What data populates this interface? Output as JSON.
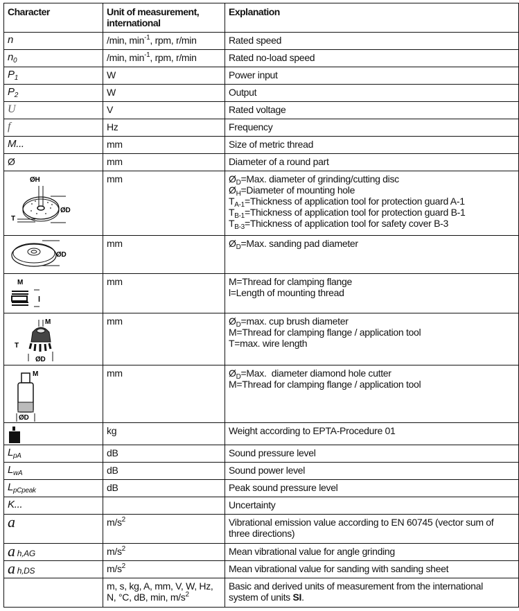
{
  "header": {
    "character": "Character",
    "unit": "Unit of measurement, international",
    "explanation": "Explanation"
  },
  "rows": [
    {
      "symbol": "n",
      "unit": "/min, min-1, rpm, r/min",
      "explanation": "Rated speed"
    },
    {
      "symbol": "n0",
      "unit": "/min, min-1, rpm, r/min",
      "explanation": "Rated no-load speed"
    },
    {
      "symbol": "P1",
      "unit": "W",
      "explanation": "Power input"
    },
    {
      "symbol": "P2",
      "unit": "W",
      "explanation": "Output"
    },
    {
      "symbol": "U",
      "unit": "V",
      "explanation": "Rated voltage"
    },
    {
      "symbol": "f",
      "unit": "Hz",
      "explanation": "Frequency"
    },
    {
      "symbol": "M...",
      "unit": "mm",
      "explanation": "Size of metric thread"
    },
    {
      "symbol": "Ø",
      "unit": "mm",
      "explanation": "Diameter of a round part"
    },
    {
      "icon": "grinding-disc-icon",
      "icon_labels": [
        "ØH",
        "ØD",
        "T"
      ],
      "unit": "mm",
      "lines": [
        "ØD=Max. diameter of grinding/cutting disc",
        "ØH=Diameter of mounting hole",
        "TA-1=Thickness of application tool for protection guard A-1",
        "TB-1=Thickness of application tool for protection guard B-1",
        "TB-3=Thickness of application tool for safety cover B-3"
      ]
    },
    {
      "icon": "sanding-pad-icon",
      "icon_labels": [
        "ØD"
      ],
      "unit": "mm",
      "lines": [
        "ØD=Max. sanding pad diameter"
      ]
    },
    {
      "icon": "thread-icon",
      "icon_labels": [
        "M",
        "l"
      ],
      "unit": "mm",
      "lines": [
        "M=Thread for clamping flange",
        "l=Length of mounting thread"
      ]
    },
    {
      "icon": "cup-brush-icon",
      "icon_labels": [
        "M",
        "T",
        "ØD"
      ],
      "unit": "mm",
      "lines": [
        "ØD=max. cup brush diameter",
        "M=Thread for clamping flange / application tool",
        "T=max. wire length"
      ]
    },
    {
      "icon": "diamond-hole-cutter-icon",
      "icon_labels": [
        "M",
        "ØD"
      ],
      "unit": "mm",
      "lines": [
        "ØD=Max.  diameter diamond hole cutter",
        "M=Thread for clamping flange / application tool"
      ]
    },
    {
      "icon": "weight-icon",
      "unit": "kg",
      "explanation": "Weight according to EPTA-Procedure 01"
    },
    {
      "symbol": "LpA",
      "unit": "dB",
      "explanation": "Sound pressure level"
    },
    {
      "symbol": "LwA",
      "unit": "dB",
      "explanation": "Sound power level"
    },
    {
      "symbol": "LpCpeak",
      "unit": "dB",
      "explanation": "Peak sound pressure level"
    },
    {
      "symbol": "K...",
      "unit": "",
      "explanation": "Uncertainty"
    },
    {
      "symbol": "a",
      "unit": "m/s2",
      "explanation": "Vibrational emission value according to EN 60745 (vector sum of three directions)"
    },
    {
      "symbol": "a h,AG",
      "unit": "m/s2",
      "explanation": "Mean vibrational value for angle grinding"
    },
    {
      "symbol": "a h,DS",
      "unit": "m/s2",
      "explanation": "Mean vibrational value for sanding with sanding sheet"
    },
    {
      "symbol": "",
      "unit": "m, s, kg, A, mm, V, W, Hz, N, °C, dB, min, m/s2",
      "explanation": "Basic and derived units of measurement from the international system of units SI."
    }
  ]
}
